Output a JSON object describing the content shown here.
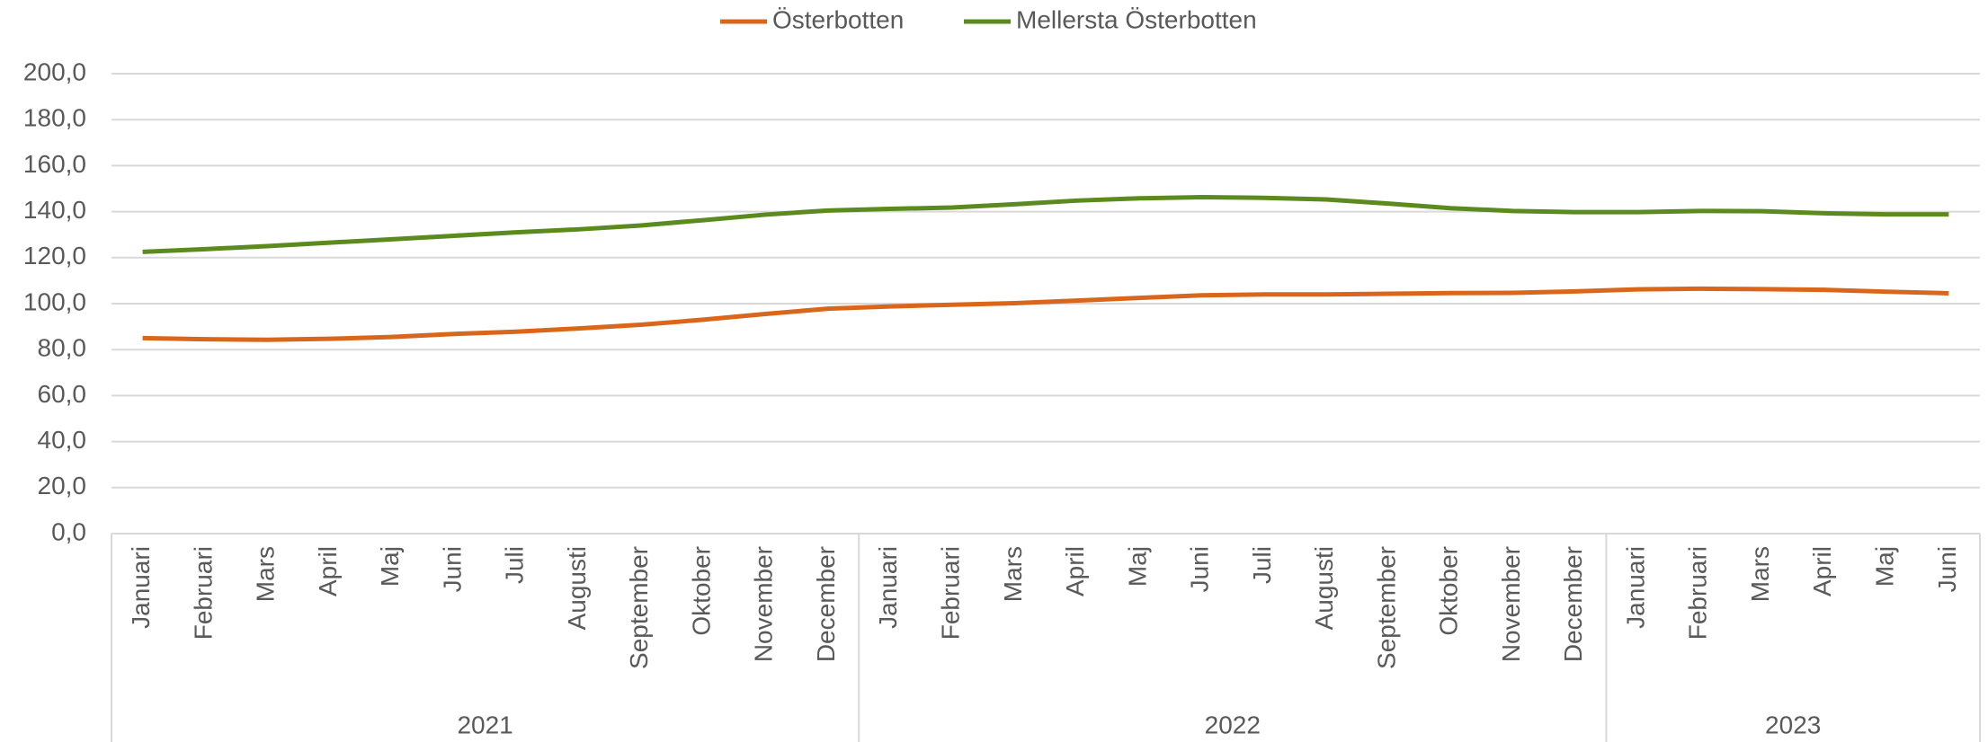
{
  "chart_data": {
    "type": "line",
    "groups": [
      {
        "name": "2021",
        "categories": [
          "Januari",
          "Februari",
          "Mars",
          "April",
          "Maj",
          "Juni",
          "Juli",
          "Augusti",
          "September",
          "Oktober",
          "November",
          "December"
        ]
      },
      {
        "name": "2022",
        "categories": [
          "Januari",
          "Februari",
          "Mars",
          "April",
          "Maj",
          "Juni",
          "Juli",
          "Augusti",
          "September",
          "Oktober",
          "November",
          "December"
        ]
      },
      {
        "name": "2023",
        "categories": [
          "Januari",
          "Februari",
          "Mars",
          "April",
          "Maj",
          "Juni"
        ]
      }
    ],
    "series": [
      {
        "name": "Österbotten",
        "color": "#d9661a",
        "values": [
          85,
          84.5,
          84.3,
          84.7,
          85.5,
          86.8,
          87.8,
          89.2,
          90.8,
          93,
          95.5,
          97.8,
          98.8,
          99.5,
          100.2,
          101.3,
          102.5,
          103.6,
          104,
          104,
          104.3,
          104.6,
          104.7,
          105.3,
          106.2,
          106.5,
          106.3,
          106,
          105.2,
          104.5
        ]
      },
      {
        "name": "Mellersta Österbotten",
        "color": "#5b8a1e",
        "values": [
          122.5,
          123.7,
          125,
          126.5,
          128,
          129.5,
          131,
          132.3,
          134,
          136.3,
          138.7,
          140.5,
          141.2,
          141.8,
          143.2,
          144.8,
          145.8,
          146.3,
          146,
          145.3,
          143.5,
          141.5,
          140.3,
          139.8,
          139.8,
          140.3,
          140.2,
          139.3,
          138.8,
          138.8
        ]
      }
    ],
    "ylim": [
      0,
      200
    ],
    "yticks": [
      {
        "value": 0,
        "label": "0,0"
      },
      {
        "value": 20,
        "label": "20,0"
      },
      {
        "value": 40,
        "label": "40,0"
      },
      {
        "value": 60,
        "label": "60,0"
      },
      {
        "value": 80,
        "label": "80,0"
      },
      {
        "value": 100,
        "label": "100,0"
      },
      {
        "value": 120,
        "label": "120,0"
      },
      {
        "value": 140,
        "label": "140,0"
      },
      {
        "value": 160,
        "label": "160,0"
      },
      {
        "value": 180,
        "label": "180,0"
      },
      {
        "value": 200,
        "label": "200,0"
      }
    ],
    "grid": true,
    "legend": "top"
  }
}
